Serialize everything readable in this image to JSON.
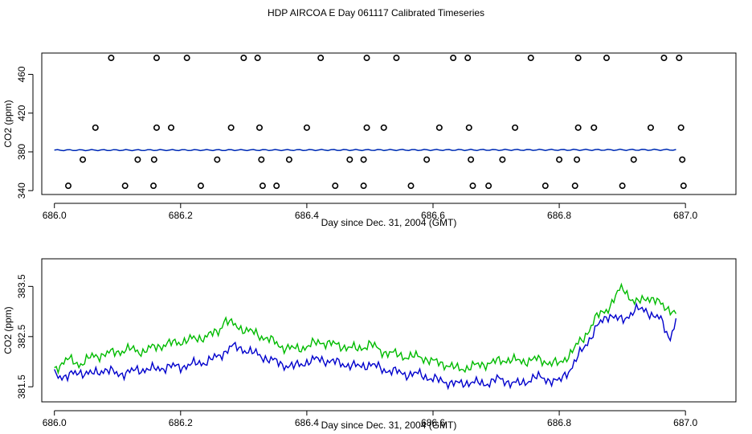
{
  "title": "HDP AIRCOA E  Day 061117  Calibrated Timeseries",
  "colors": {
    "blue": "#0000cc",
    "green": "#00bb00",
    "teal": "#008888",
    "black": "#000000"
  },
  "chart_data": [
    {
      "type": "scatter",
      "xlabel": "Day since Dec. 31, 2004 (GMT)",
      "ylabel": "CO2 (ppm)",
      "xlim": [
        685.98,
        687.08
      ],
      "ylim": [
        336,
        482
      ],
      "xticks": [
        686.0,
        686.2,
        686.4,
        686.6,
        686.8,
        687.0
      ],
      "xtick_labels": [
        "686.0",
        "686.2",
        "686.4",
        "686.6",
        "686.8",
        "687.0"
      ],
      "yticks": [
        340,
        380,
        420,
        460
      ],
      "ytick_labels": [
        "340",
        "380",
        "420",
        "460"
      ],
      "series": [
        {
          "marker": "open-circle",
          "points": [
            [
              686.09,
              477
            ],
            [
              686.162,
              477
            ],
            [
              686.21,
              477
            ],
            [
              686.3,
              477
            ],
            [
              686.322,
              477
            ],
            [
              686.422,
              477
            ],
            [
              686.495,
              477
            ],
            [
              686.542,
              477
            ],
            [
              686.632,
              477
            ],
            [
              686.655,
              477
            ],
            [
              686.755,
              477
            ],
            [
              686.83,
              477
            ],
            [
              686.875,
              477
            ],
            [
              686.966,
              477
            ],
            [
              686.99,
              477
            ],
            [
              686.065,
              405
            ],
            [
              686.162,
              405
            ],
            [
              686.185,
              405
            ],
            [
              686.28,
              405
            ],
            [
              686.325,
              405
            ],
            [
              686.4,
              405
            ],
            [
              686.495,
              405
            ],
            [
              686.522,
              405
            ],
            [
              686.61,
              405
            ],
            [
              686.657,
              405
            ],
            [
              686.73,
              405
            ],
            [
              686.83,
              405
            ],
            [
              686.855,
              405
            ],
            [
              686.945,
              405
            ],
            [
              686.993,
              405
            ],
            [
              686.045,
              372
            ],
            [
              686.132,
              372
            ],
            [
              686.158,
              372
            ],
            [
              686.258,
              372
            ],
            [
              686.328,
              372
            ],
            [
              686.372,
              372
            ],
            [
              686.468,
              372
            ],
            [
              686.49,
              372
            ],
            [
              686.59,
              372
            ],
            [
              686.66,
              372
            ],
            [
              686.71,
              372
            ],
            [
              686.8,
              372
            ],
            [
              686.828,
              372
            ],
            [
              686.918,
              372
            ],
            [
              686.995,
              372
            ],
            [
              686.022,
              345
            ],
            [
              686.112,
              345
            ],
            [
              686.157,
              345
            ],
            [
              686.232,
              345
            ],
            [
              686.33,
              345
            ],
            [
              686.352,
              345
            ],
            [
              686.445,
              345
            ],
            [
              686.49,
              345
            ],
            [
              686.565,
              345
            ],
            [
              686.663,
              345
            ],
            [
              686.688,
              345
            ],
            [
              686.778,
              345
            ],
            [
              686.825,
              345
            ],
            [
              686.9,
              345
            ],
            [
              686.997,
              345
            ]
          ]
        },
        {
          "name": "",
          "line": "flat",
          "approx": [
            [
              686.0,
              381.8
            ],
            [
              686.985,
              382.1
            ]
          ]
        }
      ]
    },
    {
      "type": "line",
      "xlabel": "Day since Dec. 31, 2004 (GMT)",
      "ylabel": "CO2 (ppm)",
      "xlim": [
        685.98,
        687.08
      ],
      "ylim": [
        381.2,
        384.05
      ],
      "xticks": [
        686.0,
        686.2,
        686.4,
        686.6,
        686.8,
        687.0
      ],
      "xtick_labels": [
        "686.0",
        "686.2",
        "686.4",
        "686.6",
        "686.8",
        "687.0"
      ],
      "yticks": [
        381.5,
        382.5,
        383.5
      ],
      "ytick_labels": [
        "381.5",
        "382.5",
        "383.5"
      ],
      "series": [
        {
          "color": "green",
          "points": [
            [
              686.0,
              381.85
            ],
            [
              686.02,
              382.05
            ],
            [
              686.04,
              381.95
            ],
            [
              686.06,
              382.1
            ],
            [
              686.08,
              382.15
            ],
            [
              686.1,
              382.2
            ],
            [
              686.12,
              382.25
            ],
            [
              686.14,
              382.2
            ],
            [
              686.16,
              382.3
            ],
            [
              686.18,
              382.35
            ],
            [
              686.2,
              382.4
            ],
            [
              686.22,
              382.45
            ],
            [
              686.24,
              382.5
            ],
            [
              686.26,
              382.6
            ],
            [
              686.27,
              382.85
            ],
            [
              686.28,
              382.75
            ],
            [
              686.3,
              382.65
            ],
            [
              686.32,
              382.55
            ],
            [
              686.34,
              382.45
            ],
            [
              686.36,
              382.3
            ],
            [
              686.38,
              382.25
            ],
            [
              686.4,
              382.3
            ],
            [
              686.42,
              382.4
            ],
            [
              686.44,
              382.35
            ],
            [
              686.46,
              382.3
            ],
            [
              686.48,
              382.25
            ],
            [
              686.5,
              382.35
            ],
            [
              686.52,
              382.2
            ],
            [
              686.54,
              382.15
            ],
            [
              686.56,
              382.1
            ],
            [
              686.58,
              382.1
            ],
            [
              686.6,
              382.0
            ],
            [
              686.62,
              381.95
            ],
            [
              686.64,
              381.85
            ],
            [
              686.66,
              381.9
            ],
            [
              686.68,
              381.95
            ],
            [
              686.7,
              382.0
            ],
            [
              686.72,
              382.05
            ],
            [
              686.74,
              382.0
            ],
            [
              686.76,
              382.05
            ],
            [
              686.78,
              382.0
            ],
            [
              686.8,
              381.95
            ],
            [
              686.82,
              382.2
            ],
            [
              686.84,
              382.5
            ],
            [
              686.86,
              382.9
            ],
            [
              686.88,
              383.1
            ],
            [
              686.9,
              383.5
            ],
            [
              686.92,
              383.15
            ],
            [
              686.94,
              383.3
            ],
            [
              686.96,
              383.15
            ],
            [
              686.975,
              383.05
            ],
            [
              686.985,
              382.95
            ]
          ]
        },
        {
          "color": "blue",
          "points": [
            [
              686.0,
              381.75
            ],
            [
              686.02,
              381.7
            ],
            [
              686.04,
              381.8
            ],
            [
              686.06,
              381.75
            ],
            [
              686.08,
              381.85
            ],
            [
              686.1,
              381.75
            ],
            [
              686.12,
              381.8
            ],
            [
              686.14,
              381.85
            ],
            [
              686.16,
              381.85
            ],
            [
              686.18,
              381.9
            ],
            [
              686.2,
              381.9
            ],
            [
              686.22,
              381.95
            ],
            [
              686.24,
              382.0
            ],
            [
              686.26,
              382.1
            ],
            [
              686.28,
              382.3
            ],
            [
              686.3,
              382.25
            ],
            [
              686.32,
              382.15
            ],
            [
              686.34,
              382.05
            ],
            [
              686.36,
              381.95
            ],
            [
              686.38,
              381.9
            ],
            [
              686.4,
              382.0
            ],
            [
              686.42,
              382.05
            ],
            [
              686.44,
              382.0
            ],
            [
              686.46,
              381.95
            ],
            [
              686.48,
              381.9
            ],
            [
              686.5,
              381.95
            ],
            [
              686.52,
              381.85
            ],
            [
              686.54,
              381.8
            ],
            [
              686.56,
              381.75
            ],
            [
              686.58,
              381.75
            ],
            [
              686.6,
              381.65
            ],
            [
              686.62,
              381.6
            ],
            [
              686.64,
              381.55
            ],
            [
              686.66,
              381.6
            ],
            [
              686.68,
              381.55
            ],
            [
              686.7,
              381.65
            ],
            [
              686.72,
              381.6
            ],
            [
              686.74,
              381.55
            ],
            [
              686.76,
              381.7
            ],
            [
              686.78,
              381.65
            ],
            [
              686.8,
              381.6
            ],
            [
              686.82,
              381.9
            ],
            [
              686.84,
              382.3
            ],
            [
              686.86,
              382.7
            ],
            [
              686.88,
              382.95
            ],
            [
              686.9,
              382.8
            ],
            [
              686.92,
              383.05
            ],
            [
              686.94,
              383.0
            ],
            [
              686.96,
              382.85
            ],
            [
              686.975,
              382.45
            ],
            [
              686.985,
              382.85
            ]
          ]
        }
      ]
    }
  ]
}
